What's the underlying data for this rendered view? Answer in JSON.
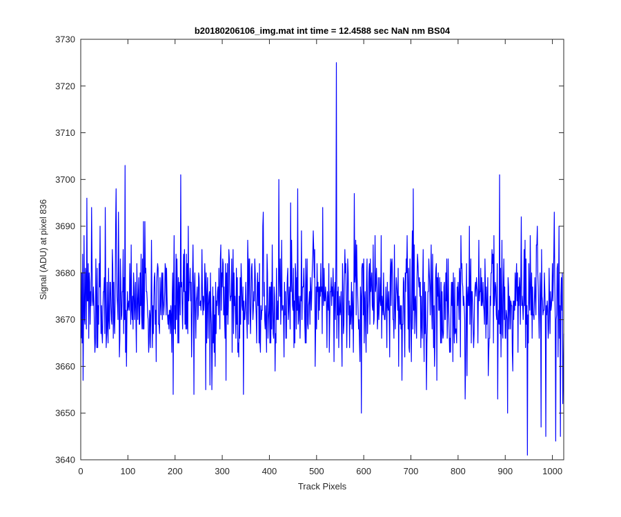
{
  "chart_data": {
    "type": "line",
    "title": "b20180206106_img.mat int time = 12.4588 sec  NaN nm BS04",
    "xlabel": "Track Pixels",
    "ylabel": "Signal (ADU) at pixel 836",
    "xlim": [
      0,
      1024
    ],
    "ylim": [
      3640,
      3730
    ],
    "xticks": [
      0,
      100,
      200,
      300,
      400,
      500,
      600,
      700,
      800,
      900,
      1000
    ],
    "yticks": [
      3640,
      3650,
      3660,
      3670,
      3680,
      3690,
      3700,
      3710,
      3720,
      3730
    ],
    "grid": false,
    "series": [
      {
        "color": "#0000ff",
        "x_start": 1,
        "x_step": 1,
        "approx_mean": 3674,
        "approx_noise_range": [
          3655,
          3692
        ],
        "notable_points": [
          {
            "x": 5,
            "y": 3657
          },
          {
            "x": 13,
            "y": 3696
          },
          {
            "x": 23,
            "y": 3694
          },
          {
            "x": 52,
            "y": 3694
          },
          {
            "x": 75,
            "y": 3698
          },
          {
            "x": 80,
            "y": 3693
          },
          {
            "x": 94,
            "y": 3703
          },
          {
            "x": 133,
            "y": 3691
          },
          {
            "x": 196,
            "y": 3654
          },
          {
            "x": 212,
            "y": 3701
          },
          {
            "x": 240,
            "y": 3654
          },
          {
            "x": 265,
            "y": 3655
          },
          {
            "x": 345,
            "y": 3654
          },
          {
            "x": 387,
            "y": 3693
          },
          {
            "x": 420,
            "y": 3700
          },
          {
            "x": 445,
            "y": 3695
          },
          {
            "x": 460,
            "y": 3698
          },
          {
            "x": 513,
            "y": 3694
          },
          {
            "x": 542,
            "y": 3725
          },
          {
            "x": 580,
            "y": 3697
          },
          {
            "x": 595,
            "y": 3650
          },
          {
            "x": 705,
            "y": 3698
          },
          {
            "x": 815,
            "y": 3653
          },
          {
            "x": 884,
            "y": 3653
          },
          {
            "x": 888,
            "y": 3701
          },
          {
            "x": 905,
            "y": 3650
          },
          {
            "x": 947,
            "y": 3641
          },
          {
            "x": 976,
            "y": 3647
          },
          {
            "x": 986,
            "y": 3645
          },
          {
            "x": 1004,
            "y": 3693
          },
          {
            "x": 1007,
            "y": 3644
          },
          {
            "x": 1017,
            "y": 3645
          },
          {
            "x": 1022,
            "y": 3652
          }
        ]
      }
    ]
  }
}
